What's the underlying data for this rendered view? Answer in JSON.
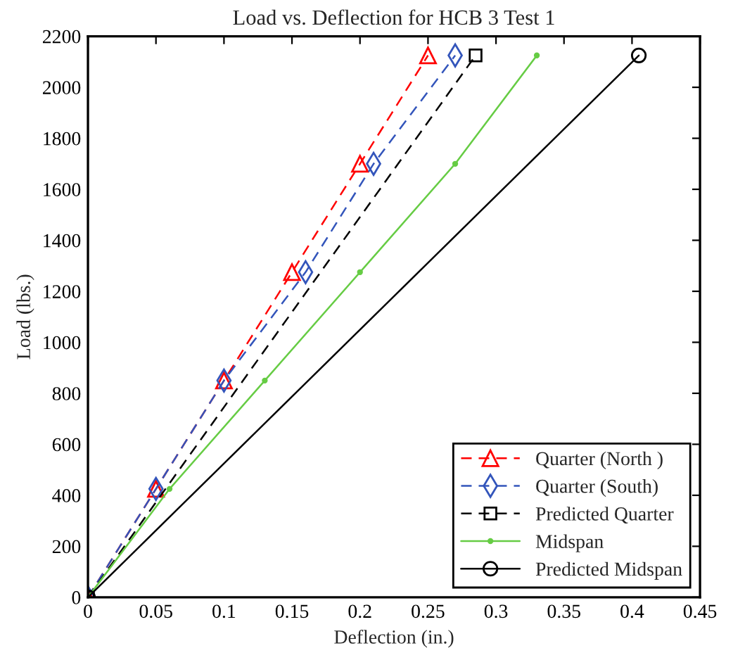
{
  "chart_data": {
    "type": "line",
    "title": "Load vs. Deflection for HCB 3 Test 1",
    "xlabel": "Deflection (in.)",
    "ylabel": "Load (lbs.)",
    "series": [
      {
        "name": "Quarter (North )",
        "color": "#ff0000",
        "marker": "triangle",
        "line_style": "dashed",
        "x": [
          0,
          0.05,
          0.1,
          0.15,
          0.2,
          0.25
        ],
        "values": [
          0,
          425,
          850,
          1275,
          1700,
          2125
        ]
      },
      {
        "name": "Quarter (South)",
        "color": "#3355bb",
        "marker": "diamond",
        "line_style": "dashed",
        "x": [
          0,
          0.05,
          0.1,
          0.16,
          0.21,
          0.27
        ],
        "values": [
          0,
          425,
          850,
          1275,
          1700,
          2125
        ]
      },
      {
        "name": "Predicted Quarter",
        "color": "#000000",
        "marker": "square",
        "line_style": "dashed",
        "x": [
          0,
          0.285
        ],
        "values": [
          0,
          2125
        ]
      },
      {
        "name": "Midspan",
        "color": "#66cc44",
        "marker": "point",
        "line_style": "solid",
        "x": [
          0,
          0.06,
          0.13,
          0.2,
          0.27,
          0.33
        ],
        "values": [
          0,
          425,
          850,
          1275,
          1700,
          2125
        ]
      },
      {
        "name": "Predicted Midspan",
        "color": "#000000",
        "marker": "circle",
        "line_style": "solid",
        "x": [
          0,
          0.405
        ],
        "values": [
          0,
          2125
        ]
      }
    ],
    "xlim": [
      0,
      0.45
    ],
    "xticks": [
      0,
      0.05,
      0.1,
      0.15,
      0.2,
      0.25,
      0.3,
      0.35,
      0.4,
      0.45
    ],
    "ylim": [
      0,
      2200
    ],
    "yticks": [
      0,
      200,
      400,
      600,
      800,
      1000,
      1200,
      1400,
      1600,
      1800,
      2000,
      2200
    ],
    "grid": false,
    "legend": "bottom right"
  }
}
